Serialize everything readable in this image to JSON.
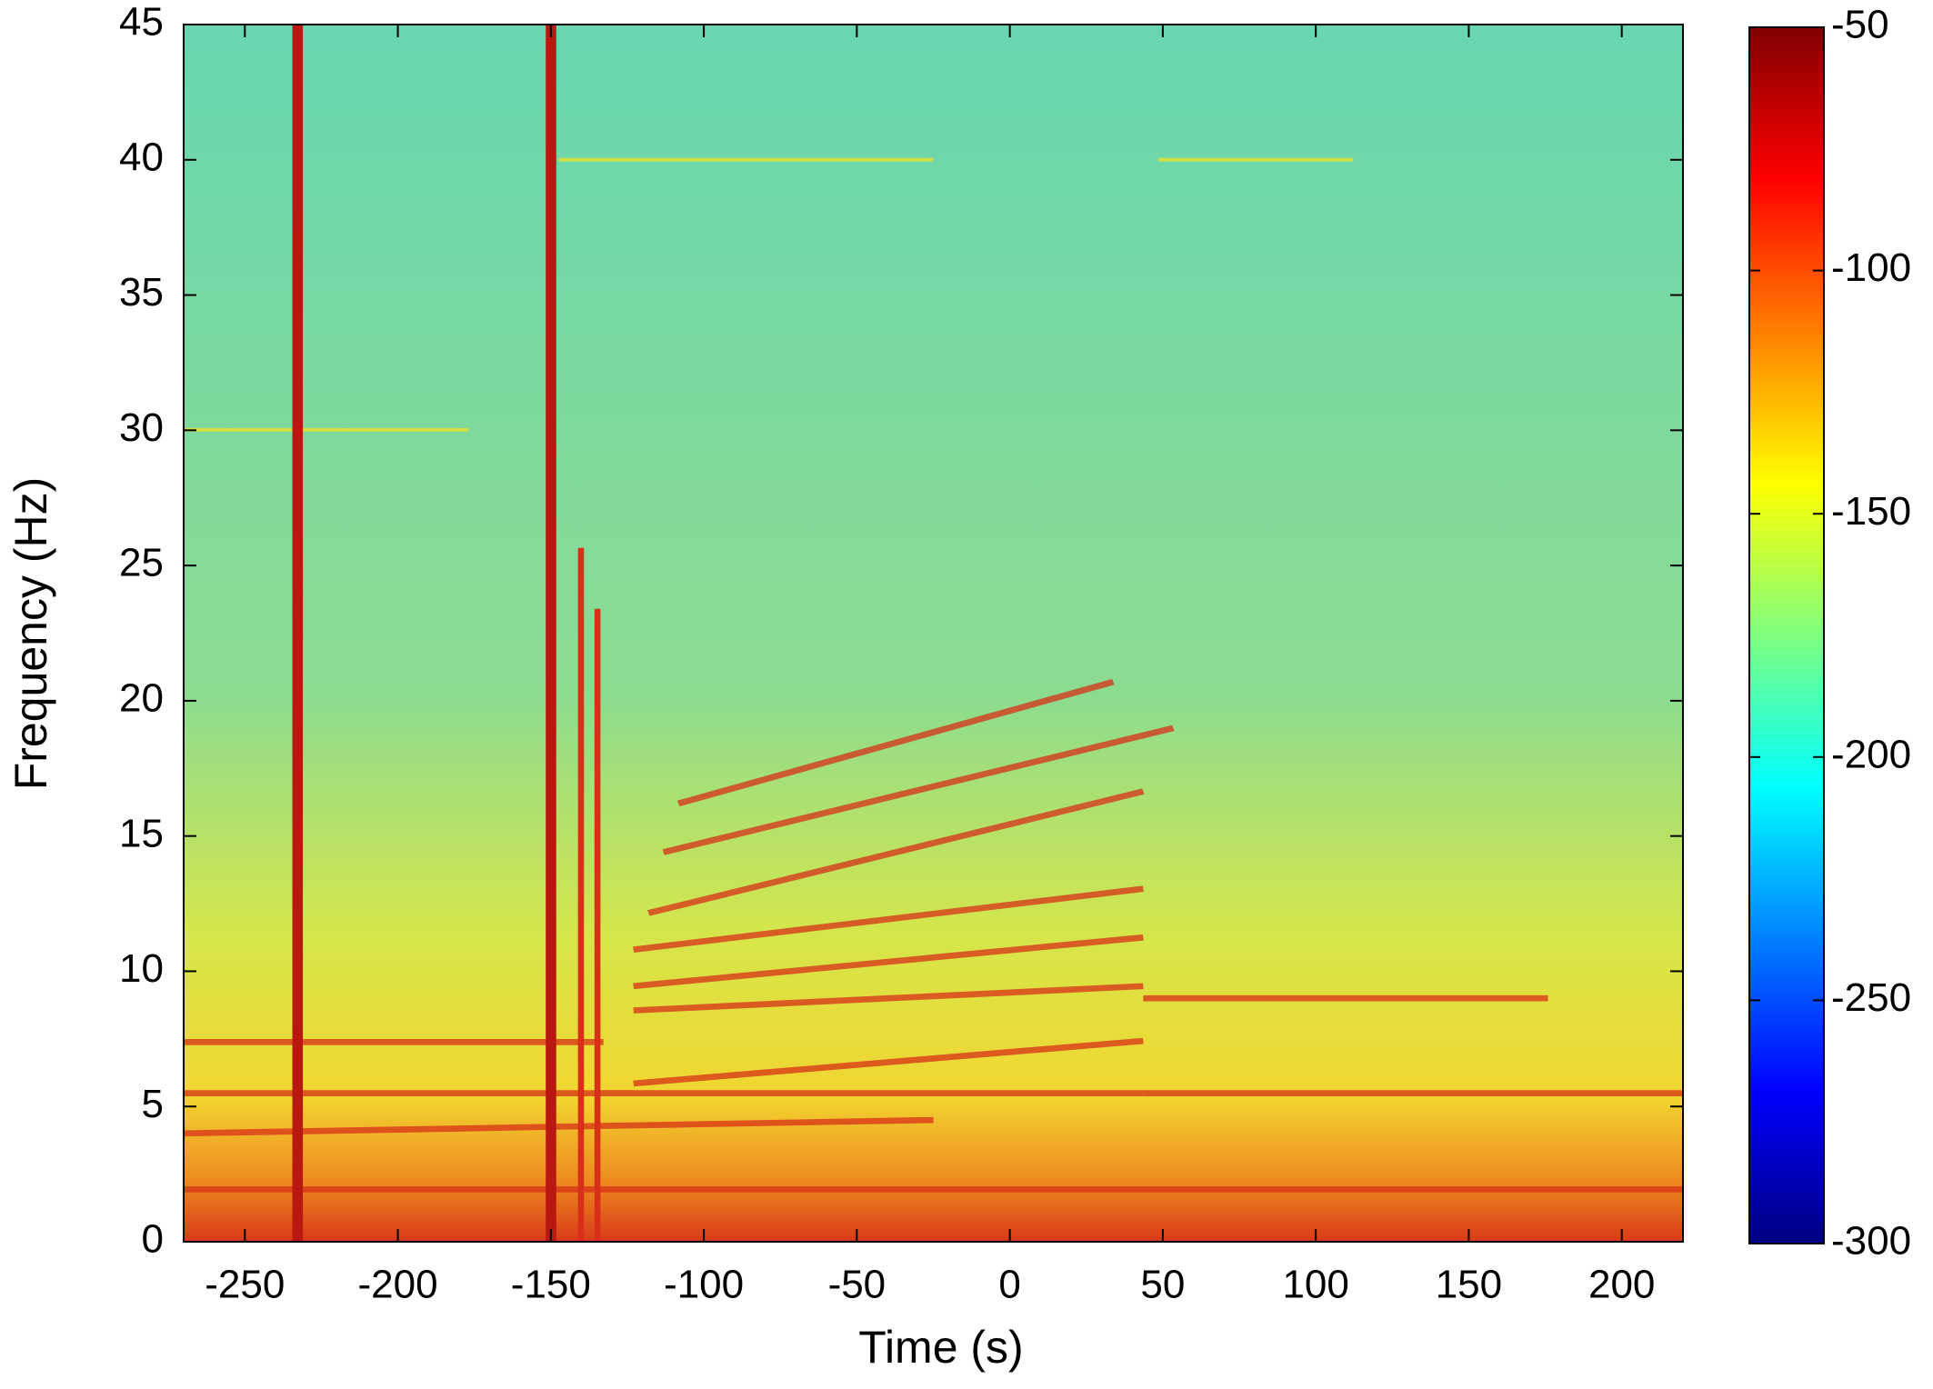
{
  "chart_data": {
    "type": "spectrogram",
    "xlabel": "Time (s)",
    "ylabel": "Frequency (Hz)",
    "xlim": [
      -270,
      220
    ],
    "ylim": [
      0,
      45
    ],
    "xticks": [
      -250,
      -200,
      -150,
      -100,
      -50,
      0,
      50,
      100,
      150,
      200
    ],
    "yticks": [
      0,
      5,
      10,
      15,
      20,
      25,
      30,
      35,
      40,
      45
    ],
    "colorbar": {
      "clim": [
        -300,
        -50
      ],
      "ticks": [
        -300,
        -250,
        -200,
        -150,
        -100,
        -50
      ],
      "colormap": "jet"
    }
  }
}
